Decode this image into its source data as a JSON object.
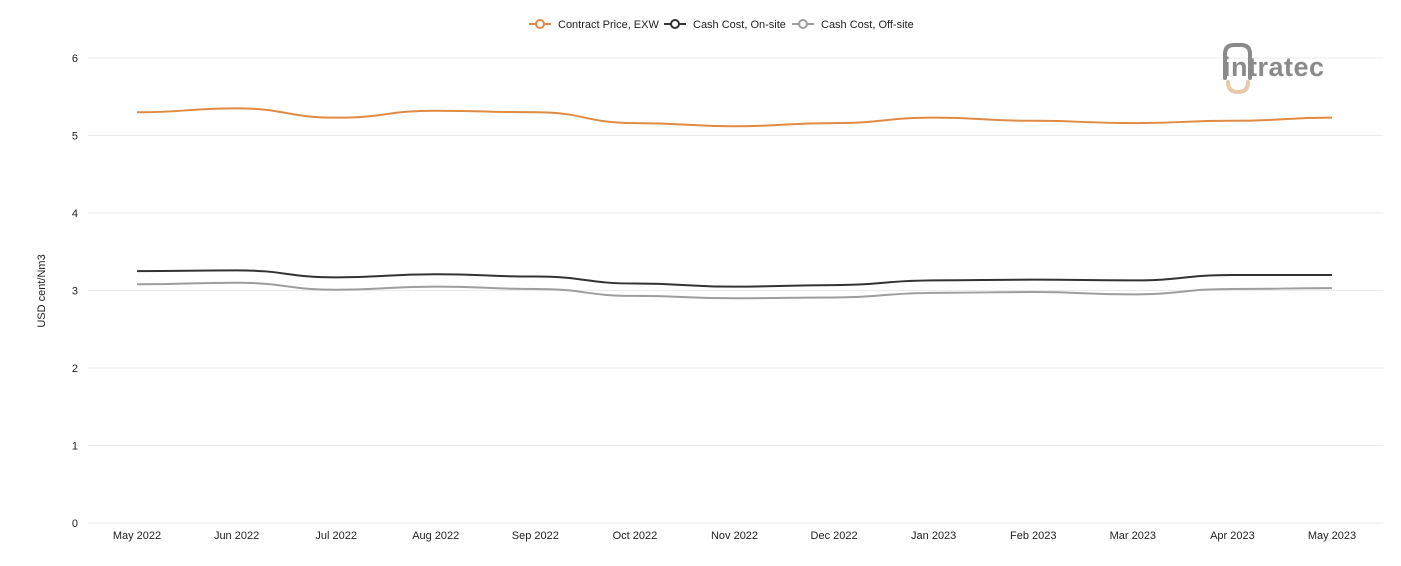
{
  "brand": {
    "logo_text": "intratec",
    "colors": {
      "accent": "#e08a44",
      "grey": "#8a8a8a",
      "light": "#e8c9a8"
    }
  },
  "chart_data": {
    "type": "line",
    "title": "",
    "xlabel": "",
    "ylabel": "USD cent/Nm3",
    "ylim": [
      0,
      6
    ],
    "yticks": [
      0,
      1,
      2,
      3,
      4,
      5,
      6
    ],
    "grid": true,
    "legend_position": "top-center",
    "categories": [
      "May 2022",
      "Jun 2022",
      "Jul 2022",
      "Aug 2022",
      "Sep 2022",
      "Oct 2022",
      "Nov 2022",
      "Dec 2022",
      "Jan 2023",
      "Feb 2023",
      "Mar 2023",
      "Apr 2023",
      "May 2023"
    ],
    "series": [
      {
        "name": "Contract Price, EXW",
        "color": "#e08a44",
        "values": [
          5.3,
          5.35,
          5.23,
          5.32,
          5.3,
          5.16,
          5.12,
          5.16,
          5.23,
          5.19,
          5.16,
          5.19,
          5.23
        ]
      },
      {
        "name": "Cash Cost, On-site",
        "color": "#333333",
        "values": [
          3.25,
          3.26,
          3.17,
          3.21,
          3.18,
          3.09,
          3.05,
          3.07,
          3.13,
          3.14,
          3.13,
          3.2,
          3.2
        ]
      },
      {
        "name": "Cash Cost, Off-site",
        "color": "#9e9e9e",
        "values": [
          3.08,
          3.1,
          3.01,
          3.05,
          3.02,
          2.93,
          2.9,
          2.91,
          2.97,
          2.98,
          2.95,
          3.02,
          3.03
        ]
      }
    ]
  }
}
